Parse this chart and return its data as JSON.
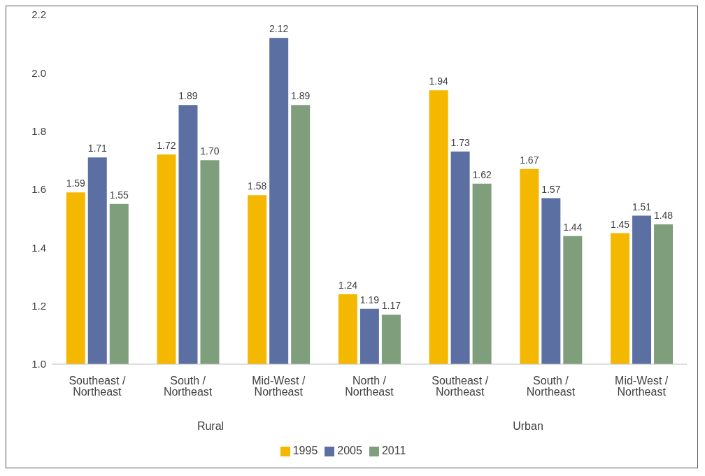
{
  "chart_data": {
    "type": "bar",
    "categories": [
      "Southeast / Northeast",
      "South / Northeast",
      "Mid-West / Northeast",
      "North / Northeast",
      "Southeast / Northeast",
      "South / Northeast",
      "Mid-West / Northeast"
    ],
    "series": [
      {
        "name": "1995",
        "color": "#f5b800",
        "values": [
          1.59,
          1.72,
          1.58,
          1.24,
          1.94,
          1.67,
          1.45
        ],
        "value_labels": [
          "1.59",
          "1.72",
          "1.58",
          "1.24",
          "1.94",
          "1.67",
          "1.45"
        ]
      },
      {
        "name": "2005",
        "color": "#5b6fa3",
        "values": [
          1.71,
          1.89,
          2.12,
          1.19,
          1.73,
          1.57,
          1.51
        ],
        "value_labels": [
          "1.71",
          "1.89",
          "2.12",
          "1.19",
          "1.73",
          "1.57",
          "1.51"
        ]
      },
      {
        "name": "2011",
        "color": "#7f9e7c",
        "values": [
          1.55,
          1.7,
          1.89,
          1.17,
          1.62,
          1.44,
          1.48
        ],
        "value_labels": [
          "1.55",
          "1.70",
          "1.89",
          "1.17",
          "1.62",
          "1.44",
          "1.48"
        ]
      }
    ],
    "ylim": [
      1.0,
      2.2
    ],
    "yticks": [
      {
        "value": 1.0,
        "label": "1.0"
      },
      {
        "value": 1.2,
        "label": "1.2"
      },
      {
        "value": 1.4,
        "label": "1.4"
      },
      {
        "value": 1.6,
        "label": "1.6"
      },
      {
        "value": 1.8,
        "label": "1.8"
      },
      {
        "value": 2.0,
        "label": "2.0"
      },
      {
        "value": 2.2,
        "label": "2.2"
      }
    ],
    "grid": false,
    "legend": "bottom",
    "annotations": [
      "Rural",
      "Urban"
    ]
  }
}
